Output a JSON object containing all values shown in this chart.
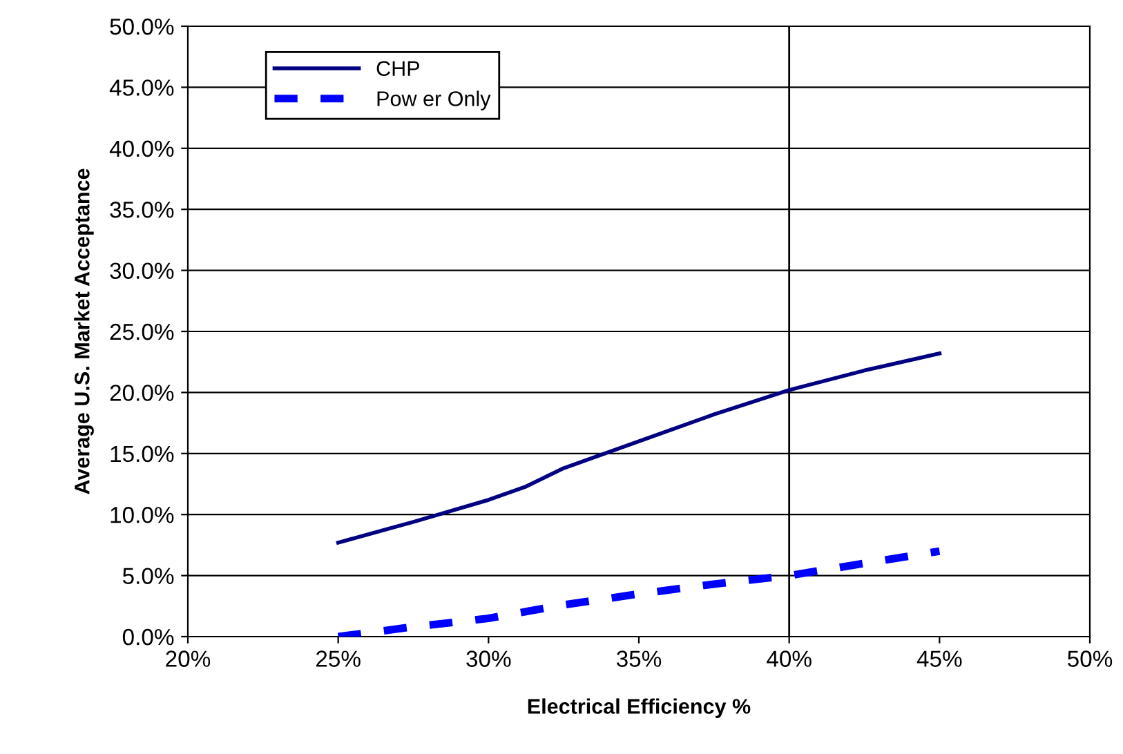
{
  "chart_data": {
    "type": "line",
    "xlabel": "Electrical Efficiency %",
    "ylabel": "Average U.S. Market Acceptance",
    "series": [
      {
        "name": "CHP",
        "color": "#000080",
        "line_style": "solid",
        "x": [
          25,
          27.5,
          30,
          31.25,
          32.5,
          35,
          37.5,
          40,
          42.5,
          45
        ],
        "values": [
          7.7,
          9.4,
          11.2,
          12.3,
          13.8,
          16.0,
          18.2,
          20.2,
          21.8,
          23.2
        ]
      },
      {
        "name": "Pow er Only",
        "color": "#0000ff",
        "line_style": "dashed",
        "x": [
          25,
          27.5,
          30,
          32.5,
          35,
          37.5,
          40,
          42.5,
          45
        ],
        "values": [
          0.0,
          0.8,
          1.5,
          2.6,
          3.5,
          4.3,
          5.0,
          6.0,
          7.0
        ]
      }
    ],
    "xlim": [
      20,
      50
    ],
    "ylim": [
      0,
      50
    ],
    "xticks": [
      {
        "value": 20,
        "label": "20%"
      },
      {
        "value": 25,
        "label": "25%"
      },
      {
        "value": 30,
        "label": "30%"
      },
      {
        "value": 35,
        "label": "35%"
      },
      {
        "value": 40,
        "label": "40%"
      },
      {
        "value": 45,
        "label": "45%"
      },
      {
        "value": 50,
        "label": "50%"
      }
    ],
    "yticks": [
      {
        "value": 0,
        "label": "0.0%"
      },
      {
        "value": 5,
        "label": "5.0%"
      },
      {
        "value": 10,
        "label": "10.0%"
      },
      {
        "value": 15,
        "label": "15.0%"
      },
      {
        "value": 20,
        "label": "20.0%"
      },
      {
        "value": 25,
        "label": "25.0%"
      },
      {
        "value": 30,
        "label": "30.0%"
      },
      {
        "value": 35,
        "label": "35.0%"
      },
      {
        "value": 40,
        "label": "40.0%"
      },
      {
        "value": 45,
        "label": "45.0%"
      },
      {
        "value": 50,
        "label": "50.0%"
      }
    ],
    "ref_lines": [
      {
        "axis": "x",
        "value": 40,
        "label": null,
        "color": "#000000"
      }
    ],
    "grid": "y",
    "legend": "top left",
    "marker": "none"
  }
}
